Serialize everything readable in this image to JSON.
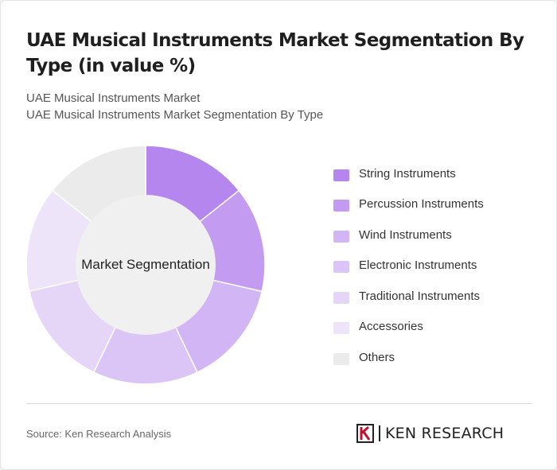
{
  "title": "UAE Musical Instruments Market Segmentation By Type (in value %)",
  "breadcrumbs": [
    "UAE Musical Instruments Market",
    "UAE Musical Instruments Market Segmentation By Type"
  ],
  "center_label": "Market Segmentation",
  "source": "Source: Ken Research Analysis",
  "logo_text": "KEN RESEARCH",
  "chart_data": {
    "type": "pie",
    "variant": "donut",
    "legend_position": "right",
    "categories": [
      "String Instruments",
      "Percussion Instruments",
      "Wind Instruments",
      "Electronic Instruments",
      "Traditional Instruments",
      "Accessories",
      "Others"
    ],
    "values": [
      14.29,
      14.29,
      14.29,
      14.29,
      14.29,
      14.29,
      14.26
    ],
    "colors": [
      "#b587ee",
      "#c39bf0",
      "#d2b5f4",
      "#dbc5f6",
      "#e5d6f8",
      "#ede4f9",
      "#ebebeb"
    ]
  }
}
